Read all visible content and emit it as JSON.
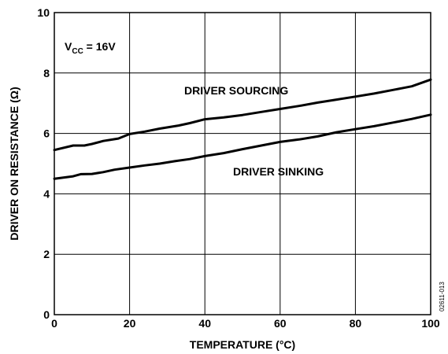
{
  "chart_data": {
    "type": "line",
    "xlabel": "TEMPERATURE (°C)",
    "ylabel": "DRIVER ON RESISTANCE (Ω)",
    "xlim": [
      0,
      100
    ],
    "ylim": [
      0,
      10
    ],
    "x_ticks": [
      "0",
      "20",
      "40",
      "60",
      "80",
      "100"
    ],
    "y_ticks": [
      "0",
      "2",
      "4",
      "6",
      "8",
      "10"
    ],
    "grid": true,
    "annotation": {
      "main": "V",
      "sub": "CC",
      "rest": " = 16V"
    },
    "figure_id": "02611-013",
    "series": [
      {
        "name": "DRIVER SOURCING",
        "x": [
          0,
          5,
          8,
          10,
          13,
          17,
          20,
          24,
          28,
          33,
          36,
          40,
          45,
          50,
          55,
          60,
          65,
          70,
          75,
          80,
          85,
          90,
          95,
          100
        ],
        "y": [
          5.45,
          5.6,
          5.6,
          5.65,
          5.75,
          5.83,
          5.98,
          6.06,
          6.16,
          6.26,
          6.34,
          6.47,
          6.53,
          6.61,
          6.71,
          6.81,
          6.91,
          7.02,
          7.12,
          7.22,
          7.32,
          7.44,
          7.56,
          7.78
        ]
      },
      {
        "name": "DRIVER SINKING",
        "x": [
          0,
          5,
          7,
          10,
          13,
          16,
          20,
          24,
          28,
          32,
          36,
          40,
          45,
          50,
          55,
          60,
          65,
          70,
          75,
          80,
          85,
          90,
          95,
          100
        ],
        "y": [
          4.5,
          4.58,
          4.65,
          4.66,
          4.72,
          4.8,
          4.87,
          4.94,
          5.0,
          5.08,
          5.15,
          5.25,
          5.35,
          5.48,
          5.6,
          5.72,
          5.8,
          5.9,
          6.04,
          6.14,
          6.24,
          6.36,
          6.48,
          6.62
        ]
      }
    ]
  }
}
